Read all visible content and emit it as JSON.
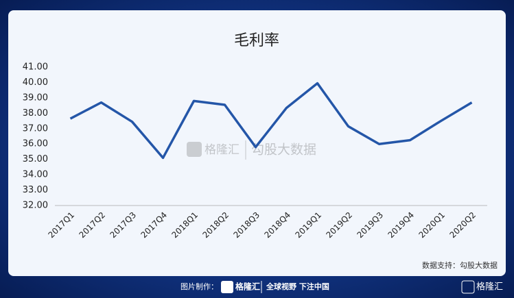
{
  "chart_data": {
    "type": "line",
    "title": "毛利率",
    "categories": [
      "2017Q1",
      "2017Q2",
      "2017Q3",
      "2017Q4",
      "2018Q1",
      "2018Q2",
      "2018Q3",
      "2018Q4",
      "2019Q1",
      "2019Q2",
      "2019Q3",
      "2019Q4",
      "2020Q1",
      "2020Q2"
    ],
    "values": [
      37.65,
      38.7,
      37.45,
      35.1,
      38.8,
      38.55,
      35.8,
      38.35,
      39.95,
      37.15,
      36.0,
      36.25,
      37.5,
      38.7
    ],
    "color": "#2456a8",
    "ylim": [
      32,
      41
    ],
    "yticks": [
      {
        "value": 32,
        "label": "32.00"
      },
      {
        "value": 33,
        "label": "33.00"
      },
      {
        "value": 34,
        "label": "34.00"
      },
      {
        "value": 35,
        "label": "35.00"
      },
      {
        "value": 36,
        "label": "36.00"
      },
      {
        "value": 37,
        "label": "37.00"
      },
      {
        "value": 38,
        "label": "38.00"
      },
      {
        "value": 39,
        "label": "39.00"
      },
      {
        "value": 40,
        "label": "40.00"
      },
      {
        "value": 41,
        "label": "41.00"
      }
    ],
    "grid": false
  },
  "source": "数据支持：勾股大数据",
  "watermark": {
    "brand": "格隆汇",
    "partner": "勾股大数据"
  },
  "footer": {
    "label": "图片制作：",
    "brand": "格隆汇",
    "slogan": "全球视野 下注中国",
    "corner_brand": "格隆汇"
  }
}
